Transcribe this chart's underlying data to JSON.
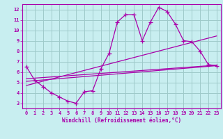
{
  "xlabel": "Windchill (Refroidissement éolien,°C)",
  "xlim": [
    -0.5,
    23.5
  ],
  "ylim": [
    2.5,
    12.5
  ],
  "yticks": [
    3,
    4,
    5,
    6,
    7,
    8,
    9,
    10,
    11,
    12
  ],
  "xticks": [
    0,
    1,
    2,
    3,
    4,
    5,
    6,
    7,
    8,
    9,
    10,
    11,
    12,
    13,
    14,
    15,
    16,
    17,
    18,
    19,
    20,
    21,
    22,
    23
  ],
  "bg_color": "#c8eef0",
  "grid_color": "#9ec9c9",
  "line_color": "#aa00aa",
  "curve_x": [
    0,
    1,
    2,
    3,
    4,
    5,
    6,
    7,
    8,
    9,
    10,
    11,
    12,
    13,
    14,
    15,
    16,
    17,
    18,
    19,
    20,
    21,
    22,
    23
  ],
  "curve_y": [
    6.5,
    5.2,
    4.6,
    4.0,
    3.6,
    3.2,
    3.0,
    4.1,
    4.2,
    6.3,
    7.8,
    10.8,
    11.5,
    11.5,
    9.0,
    10.8,
    12.2,
    11.8,
    10.6,
    9.0,
    8.9,
    8.0,
    6.7,
    6.6
  ],
  "line1_x": [
    0,
    23
  ],
  "line1_y": [
    5.35,
    6.65
  ],
  "line2_x": [
    0,
    23
  ],
  "line2_y": [
    5.1,
    6.6
  ],
  "line3_x": [
    0,
    23
  ],
  "line3_y": [
    4.7,
    9.45
  ]
}
